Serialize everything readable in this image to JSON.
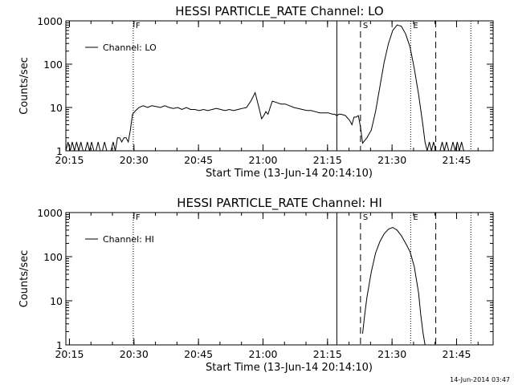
{
  "footer": {
    "timestamp": "14-Jun-2014 03:47"
  },
  "chart_data": [
    {
      "type": "line",
      "title": "HESSI PARTICLE_RATE Channel: LO",
      "xlabel": "Start Time (13-Jun-14 20:14:10)",
      "ylabel": "Counts/sec",
      "xscale": "time",
      "yscale": "log",
      "xlim": [
        "20:14:10",
        "21:53:30"
      ],
      "ylim": [
        1,
        1000
      ],
      "x_ticks": [
        "20:15",
        "20:30",
        "20:45",
        "21:00",
        "21:15",
        "21:30",
        "21:45"
      ],
      "y_ticks": [
        "1",
        "10",
        "100",
        "1000"
      ],
      "legend": {
        "label": "Channel: LO",
        "placement": "top-left"
      },
      "markers": [
        {
          "time": "20:29:50",
          "style": "dotted",
          "label": "F"
        },
        {
          "time": "21:17:10",
          "style": "solid",
          "label": ""
        },
        {
          "time": "21:22:40",
          "style": "dashed",
          "label": "S"
        },
        {
          "time": "21:34:20",
          "style": "dotted",
          "label": "E"
        },
        {
          "time": "21:40:10",
          "style": "dashed",
          "label": ""
        },
        {
          "time": "21:48:20",
          "style": "dotted",
          "label": ""
        }
      ],
      "series": [
        {
          "x": [
            "20:14:10",
            "20:14:40",
            "20:15:10",
            "20:15:40",
            "20:16:10",
            "20:16:40",
            "20:17:10",
            "20:17:40",
            "20:18:10",
            "20:18:40",
            "20:19:10",
            "20:19:40",
            "20:20:10",
            "20:20:40",
            "20:21:10",
            "20:21:40",
            "20:22:10",
            "20:22:40",
            "20:23:10",
            "20:23:40",
            "20:24:10",
            "20:24:40",
            "20:25:10",
            "20:25:40",
            "20:26:10",
            "20:26:40",
            "20:27:10",
            "20:27:40",
            "20:28:10",
            "20:28:40",
            "20:29:10",
            "20:29:40",
            "20:30:10",
            "20:30:40",
            "20:31:10",
            "20:32:10",
            "20:33:10",
            "20:34:10",
            "20:35:10",
            "20:36:10",
            "20:37:10",
            "20:38:10",
            "20:39:10",
            "20:40:10",
            "20:41:10",
            "20:42:10",
            "20:43:10",
            "20:44:10",
            "20:45:10",
            "20:46:10",
            "20:47:10",
            "20:48:10",
            "20:49:10",
            "20:50:10",
            "20:51:10",
            "20:52:10",
            "20:53:10",
            "20:54:10",
            "20:55:10",
            "20:56:10",
            "20:57:10",
            "20:58:10",
            "20:59:10",
            "20:59:40",
            "21:00:10",
            "21:00:40",
            "21:01:10",
            "21:01:40",
            "21:02:10",
            "21:03:10",
            "21:04:10",
            "21:05:10",
            "21:06:10",
            "21:07:10",
            "21:08:10",
            "21:09:10",
            "21:10:10",
            "21:11:10",
            "21:12:10",
            "21:13:10",
            "21:14:10",
            "21:15:10",
            "21:16:10",
            "21:16:40",
            "21:17:10",
            "21:17:40",
            "21:18:10",
            "21:19:10",
            "21:20:10",
            "21:20:40",
            "21:21:10",
            "21:21:40",
            "21:22:10",
            "21:22:40",
            "21:23:10",
            "21:24:10",
            "21:25:10",
            "21:26:10",
            "21:27:10",
            "21:28:10",
            "21:29:10",
            "21:30:10",
            "21:31:10",
            "21:32:10",
            "21:33:10",
            "21:34:10",
            "21:35:10",
            "21:36:10",
            "21:37:10",
            "21:37:40",
            "21:38:10",
            "21:38:40",
            "21:39:10",
            "21:39:40",
            "21:40:10",
            "21:40:40",
            "21:41:10",
            "21:41:40",
            "21:42:10",
            "21:42:40",
            "21:43:10",
            "21:43:40",
            "21:44:10",
            "21:44:40",
            "21:45:10",
            "21:45:40",
            "21:46:10",
            "21:46:40",
            "21:47:10"
          ],
          "y": [
            1,
            1.6,
            1,
            1.6,
            1,
            1.6,
            1,
            1.6,
            1,
            1,
            1.6,
            1,
            1.6,
            1,
            1,
            1.6,
            1,
            1,
            1.6,
            1,
            1,
            1,
            1.6,
            1,
            2,
            2,
            1.6,
            2,
            2,
            1.6,
            3,
            7,
            8,
            9,
            10,
            11,
            10,
            11,
            10.5,
            10,
            11,
            10,
            9.5,
            10,
            9,
            10,
            9,
            9,
            8.5,
            9,
            8.5,
            9,
            9.5,
            9,
            8.5,
            9,
            8.5,
            9,
            9.5,
            10,
            14,
            22,
            9,
            5.5,
            6.5,
            8,
            7,
            10,
            14,
            13,
            12,
            12,
            11,
            10,
            9.5,
            9,
            8.5,
            8.5,
            8,
            7.5,
            7.5,
            7.5,
            7,
            7,
            6.5,
            7,
            7,
            6.5,
            5,
            4,
            6,
            6,
            6.5,
            3.5,
            1.5,
            2,
            3,
            8,
            30,
            110,
            300,
            600,
            800,
            750,
            500,
            250,
            80,
            20,
            4,
            1.6,
            1,
            1.6,
            1,
            1.6,
            1,
            1,
            1,
            1.6,
            1,
            1.6,
            1,
            1,
            1.6,
            1,
            1.6,
            1,
            1.6,
            1,
            1
          ]
        }
      ]
    },
    {
      "type": "line",
      "title": "HESSI PARTICLE_RATE Channel: HI",
      "xlabel": "Start Time (13-Jun-14 20:14:10)",
      "ylabel": "Counts/sec",
      "xscale": "time",
      "yscale": "log",
      "xlim": [
        "20:14:10",
        "21:53:30"
      ],
      "ylim": [
        1,
        1000
      ],
      "x_ticks": [
        "20:15",
        "20:30",
        "20:45",
        "21:00",
        "21:15",
        "21:30",
        "21:45"
      ],
      "y_ticks": [
        "1",
        "10",
        "100",
        "1000"
      ],
      "legend": {
        "label": "Channel: HI",
        "placement": "top-left"
      },
      "markers": [
        {
          "time": "20:29:50",
          "style": "dotted",
          "label": "F"
        },
        {
          "time": "21:17:10",
          "style": "solid",
          "label": ""
        },
        {
          "time": "21:22:40",
          "style": "dashed",
          "label": "S"
        },
        {
          "time": "21:34:20",
          "style": "dotted",
          "label": "E"
        },
        {
          "time": "21:40:10",
          "style": "dashed",
          "label": ""
        },
        {
          "time": "21:48:20",
          "style": "dotted",
          "label": ""
        }
      ],
      "series": [
        {
          "x": [
            "21:23:10",
            "21:23:40",
            "21:24:10",
            "21:25:10",
            "21:26:10",
            "21:27:10",
            "21:28:10",
            "21:29:10",
            "21:30:10",
            "21:31:10",
            "21:32:10",
            "21:33:10",
            "21:34:10",
            "21:35:10",
            "21:36:10",
            "21:36:40",
            "21:37:10",
            "21:37:40"
          ],
          "y": [
            1.8,
            5,
            12,
            45,
            120,
            220,
            330,
            420,
            460,
            400,
            300,
            200,
            130,
            60,
            15,
            5,
            2,
            1
          ]
        }
      ]
    }
  ]
}
